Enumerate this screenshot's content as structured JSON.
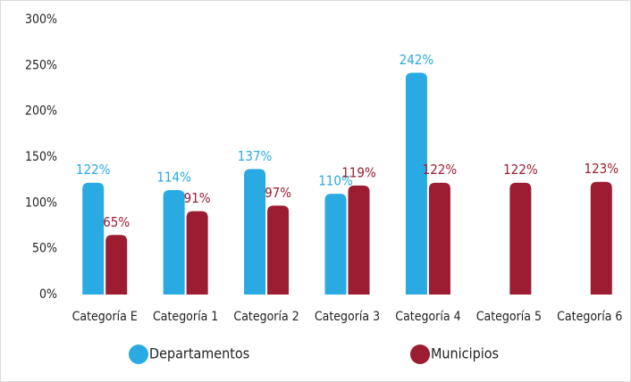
{
  "chart_data": {
    "type": "bar",
    "categories": [
      "Categoría E",
      "Categoría 1",
      "Categoría 2",
      "Categoría 3",
      "Categoría 4",
      "Categoría 5",
      "Categoría 6"
    ],
    "series": [
      {
        "name": "Departamentos",
        "color": "#2aaae2",
        "values": [
          122,
          114,
          137,
          110,
          242,
          null,
          null
        ],
        "value_labels": [
          "122%",
          "114%",
          "137%",
          "110%",
          "242%",
          null,
          null
        ]
      },
      {
        "name": "Municipios",
        "color": "#9c1c31",
        "values": [
          65,
          91,
          97,
          119,
          122,
          122,
          123
        ],
        "value_labels": [
          "65%",
          "91%",
          "97%",
          "119%",
          "122%",
          "122%",
          "123%"
        ]
      }
    ],
    "ylim": [
      0,
      300
    ],
    "yticks": [
      {
        "value": 0,
        "label": "0%"
      },
      {
        "value": 50,
        "label": "50%"
      },
      {
        "value": 100,
        "label": "100%"
      },
      {
        "value": 150,
        "label": "150%"
      },
      {
        "value": 200,
        "label": "200%"
      },
      {
        "value": 250,
        "label": "250%"
      },
      {
        "value": 300,
        "label": "300%"
      }
    ],
    "grid": false
  }
}
